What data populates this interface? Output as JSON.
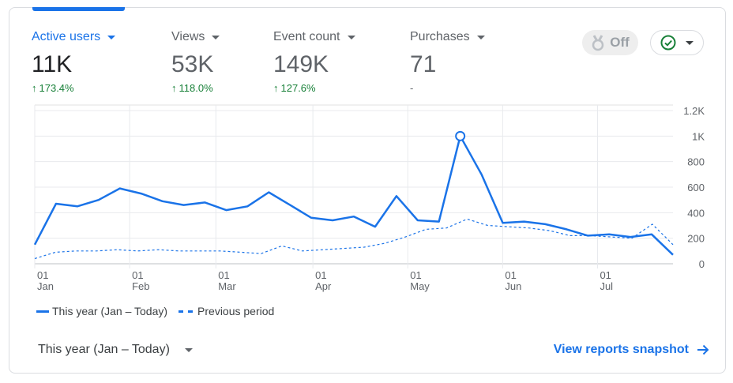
{
  "metrics": [
    {
      "label": "Active users",
      "value": "11K",
      "delta": "173.4%"
    },
    {
      "label": "Views",
      "value": "53K",
      "delta": "118.0%"
    },
    {
      "label": "Event count",
      "value": "149K",
      "delta": "127.6%"
    },
    {
      "label": "Purchases",
      "value": "71",
      "delta": "-"
    }
  ],
  "controls": {
    "off_label": "Off"
  },
  "legend": {
    "this_year": "This year (Jan – Today)",
    "previous": "Previous period"
  },
  "footer": {
    "range_label": "This year (Jan – Today)",
    "snapshot_link": "View reports snapshot"
  },
  "colors": {
    "accent": "#1a73e8",
    "positive": "#188038",
    "check_green": "#188038"
  },
  "chart_data": {
    "type": "line",
    "yticks": [
      "0",
      "200",
      "400",
      "600",
      "800",
      "1K",
      "1.2K"
    ],
    "ylim": [
      0,
      1200
    ],
    "xticks": [
      {
        "day": "01",
        "month": "Jan"
      },
      {
        "day": "01",
        "month": "Feb"
      },
      {
        "day": "01",
        "month": "Mar"
      },
      {
        "day": "01",
        "month": "Apr"
      },
      {
        "day": "01",
        "month": "May"
      },
      {
        "day": "01",
        "month": "Jun"
      },
      {
        "day": "01",
        "month": "Jul"
      }
    ],
    "xtick_weeks": [
      0,
      4.4,
      8.4,
      12.9,
      17.3,
      21.7,
      26.1
    ],
    "x_max_weeks": 29.6,
    "grid": true,
    "series": [
      {
        "name": "This year (Jan – Today)",
        "style": "solid",
        "values": [
          150,
          470,
          450,
          500,
          590,
          550,
          490,
          460,
          480,
          420,
          450,
          560,
          460,
          360,
          340,
          370,
          290,
          530,
          340,
          330,
          1000,
          700,
          320,
          330,
          310,
          270,
          220,
          230,
          210,
          230,
          70
        ]
      },
      {
        "name": "Previous period",
        "style": "dashed",
        "values": [
          40,
          90,
          100,
          100,
          110,
          100,
          110,
          100,
          100,
          100,
          90,
          80,
          140,
          100,
          110,
          120,
          130,
          160,
          210,
          270,
          280,
          350,
          300,
          290,
          280,
          260,
          220,
          220,
          210,
          200,
          310,
          150
        ]
      }
    ],
    "highlight_index": 20
  }
}
